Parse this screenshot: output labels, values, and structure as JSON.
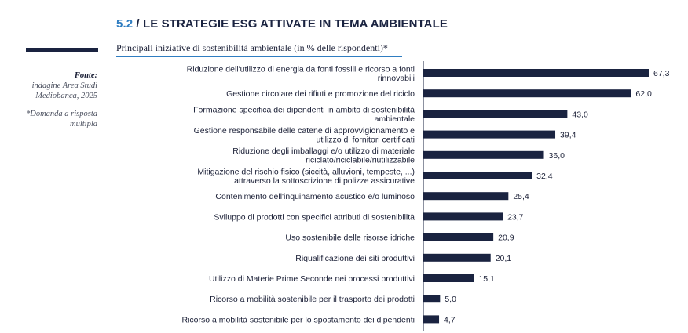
{
  "header": {
    "section_number": "5.2",
    "section_title": " / LE STRATEGIE ESG ATTIVATE IN TEMA AMBIENTALE"
  },
  "source": {
    "label": "Fonte:",
    "line1": "indagine Area Studi",
    "line2": "Mediobanca, 2025",
    "note1": "*Domanda a risposta",
    "note2": "multipla"
  },
  "chart_data": {
    "type": "bar",
    "orientation": "horizontal",
    "title": "Principali iniziative di sostenibilità ambientale (in % delle rispondenti)*",
    "xlim": [
      0,
      67.3
    ],
    "grid": false,
    "bar_color": "#1a2340",
    "categories": [
      [
        "Riduzione dell'utilizzo di energia da fonti fossili e ricorso a fonti",
        "rinnovabili"
      ],
      [
        "Gestione circolare dei rifiuti e promozione del riciclo"
      ],
      [
        "Formazione specifica dei dipendenti in ambito di sostenibilità",
        "ambientale"
      ],
      [
        "Gestione responsabile delle catene di approvvigionamento e",
        "utilizzo di fornitori certificati"
      ],
      [
        "Riduzione degli imballaggi e/o utilizzo di materiale",
        "riciclato/riciclabile/riutilizzabile"
      ],
      [
        "Mitigazione del rischio fisico (siccità, alluvioni, tempeste, ...)",
        "attraverso la sottoscrizione di polizze assicurative"
      ],
      [
        "Contenimento dell'inquinamento acustico e/o luminoso"
      ],
      [
        "Sviluppo di prodotti con specifici attributi di sostenibilità"
      ],
      [
        "Uso sostenibile delle risorse idriche"
      ],
      [
        "Riqualificazione dei siti produttivi"
      ],
      [
        "Utilizzo di Materie Prime Seconde nei processi produttivi"
      ],
      [
        "Ricorso a mobilità sostenibile per il trasporto dei prodotti"
      ],
      [
        "Ricorso a mobilità sostenibile per lo spostamento dei dipendenti"
      ]
    ],
    "values": [
      67.3,
      62.0,
      43.0,
      39.4,
      36.0,
      32.4,
      25.4,
      23.7,
      20.9,
      20.1,
      15.1,
      5.0,
      4.7
    ],
    "value_labels": [
      "67,3",
      "62,0",
      "43,0",
      "39,4",
      "36,0",
      "32,4",
      "25,4",
      "23,7",
      "20,9",
      "20,1",
      "15,1",
      "5,0",
      "4,7"
    ]
  }
}
